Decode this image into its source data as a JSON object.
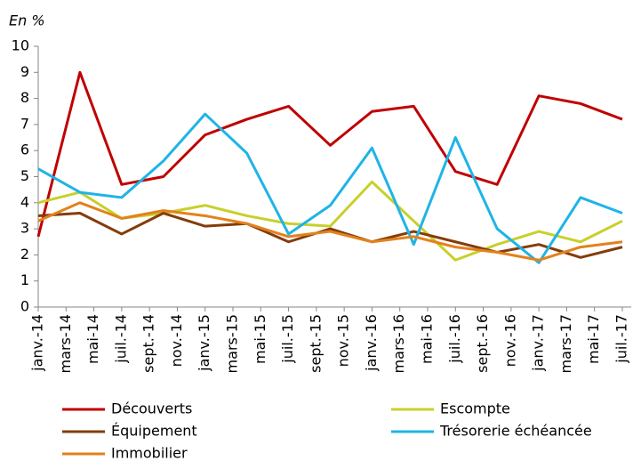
{
  "chart_data": {
    "type": "line",
    "y_label": "En %",
    "x": [
      "2014-01",
      "2014-04",
      "2014-07",
      "2014-10",
      "2015-01",
      "2015-04",
      "2015-07",
      "2015-10",
      "2016-01",
      "2016-04",
      "2016-07",
      "2016-10",
      "2017-01",
      "2017-04",
      "2017-07"
    ],
    "xlim": [
      "2014-01",
      "2017-07"
    ],
    "xticks": [
      {
        "value": "2014-01",
        "label": "janv.-14"
      },
      {
        "value": "2014-03",
        "label": "mars-14"
      },
      {
        "value": "2014-05",
        "label": "mai-14"
      },
      {
        "value": "2014-07",
        "label": "juil.-14"
      },
      {
        "value": "2014-09",
        "label": "sept.-14"
      },
      {
        "value": "2014-11",
        "label": "nov.-14"
      },
      {
        "value": "2015-01",
        "label": "janv.-15"
      },
      {
        "value": "2015-03",
        "label": "mars-15"
      },
      {
        "value": "2015-05",
        "label": "mai-15"
      },
      {
        "value": "2015-07",
        "label": "juil.-15"
      },
      {
        "value": "2015-09",
        "label": "sept.-15"
      },
      {
        "value": "2015-11",
        "label": "nov.-15"
      },
      {
        "value": "2016-01",
        "label": "janv.-16"
      },
      {
        "value": "2016-03",
        "label": "mars-16"
      },
      {
        "value": "2016-05",
        "label": "mai-16"
      },
      {
        "value": "2016-07",
        "label": "juil.-16"
      },
      {
        "value": "2016-09",
        "label": "sept.-16"
      },
      {
        "value": "2016-11",
        "label": "nov.-16"
      },
      {
        "value": "2017-01",
        "label": "janv.-17"
      },
      {
        "value": "2017-03",
        "label": "mars-17"
      },
      {
        "value": "2017-05",
        "label": "mai-17"
      },
      {
        "value": "2017-07",
        "label": "juil.-17"
      }
    ],
    "ylim": [
      0,
      10
    ],
    "yticks": [
      0,
      1,
      2,
      3,
      4,
      5,
      6,
      7,
      8,
      9,
      10
    ],
    "series": [
      {
        "name": "Découverts",
        "color": "#c00000",
        "values": [
          2.7,
          9.0,
          4.7,
          5.0,
          6.6,
          7.2,
          7.7,
          6.2,
          7.5,
          7.7,
          5.2,
          4.7,
          8.1,
          7.8,
          7.2
        ]
      },
      {
        "name": "Escompte",
        "color": "#c8d02a",
        "values": [
          4.0,
          4.4,
          3.4,
          3.6,
          3.9,
          3.5,
          3.2,
          3.1,
          4.8,
          3.3,
          1.8,
          2.4,
          2.9,
          2.5,
          3.3
        ]
      },
      {
        "name": "Équipement",
        "color": "#843c0c",
        "values": [
          3.5,
          3.6,
          2.8,
          3.6,
          3.1,
          3.2,
          2.5,
          3.0,
          2.5,
          2.9,
          2.5,
          2.1,
          2.4,
          1.9,
          2.3
        ]
      },
      {
        "name": "Trésorerie échéancée",
        "color": "#1fb4e6",
        "values": [
          5.3,
          4.4,
          4.2,
          5.6,
          7.4,
          5.9,
          2.8,
          3.9,
          6.1,
          2.4,
          6.5,
          3.0,
          1.7,
          4.2,
          3.6
        ]
      },
      {
        "name": "Immobilier",
        "color": "#e2821c",
        "values": [
          3.3,
          4.0,
          3.4,
          3.7,
          3.5,
          3.2,
          2.7,
          2.9,
          2.5,
          2.7,
          2.3,
          2.1,
          1.8,
          2.3,
          2.5
        ]
      }
    ]
  }
}
